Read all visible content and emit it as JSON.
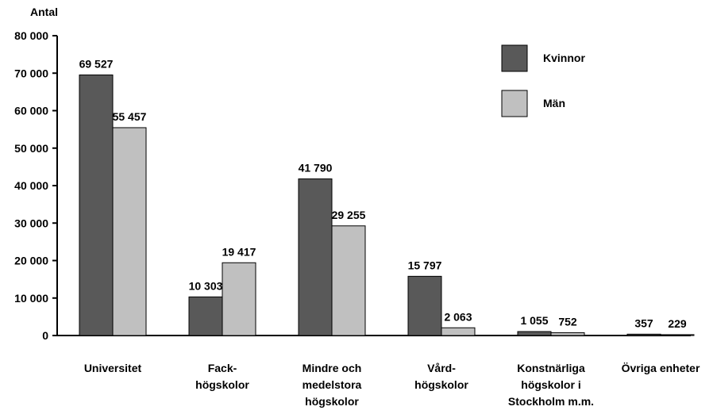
{
  "chart_data": {
    "type": "bar",
    "ylabel": "Antal",
    "ylim": [
      0,
      80000
    ],
    "yticks": [
      {
        "value": 0,
        "label": "0"
      },
      {
        "value": 10000,
        "label": "10 000"
      },
      {
        "value": 20000,
        "label": "20 000"
      },
      {
        "value": 30000,
        "label": "30 000"
      },
      {
        "value": 40000,
        "label": "40 000"
      },
      {
        "value": 50000,
        "label": "50 000"
      },
      {
        "value": 60000,
        "label": "60 000"
      },
      {
        "value": 70000,
        "label": "70 000"
      },
      {
        "value": 80000,
        "label": "80 000"
      }
    ],
    "categories": [
      [
        "Universitet"
      ],
      [
        "Fack-",
        "högskolor"
      ],
      [
        "Mindre och",
        "medelstora",
        "högskolor"
      ],
      [
        "Vård-",
        "högskolor"
      ],
      [
        "Konstnärliga",
        "högskolor i",
        "Stockholm m.m."
      ],
      [
        "Övriga enheter"
      ]
    ],
    "series": [
      {
        "name": "Kvinnor",
        "color": "#595959",
        "values": [
          69527,
          10303,
          41790,
          15797,
          1055,
          357
        ],
        "labels": [
          "69 527",
          "10 303",
          "41 790",
          "15 797",
          "1 055",
          "357"
        ]
      },
      {
        "name": "Män",
        "color": "#c0c0c0",
        "values": [
          55457,
          19417,
          29255,
          2063,
          752,
          229
        ],
        "labels": [
          "55 457",
          "19 417",
          "29 255",
          "2 063",
          "752",
          "229"
        ]
      }
    ],
    "grid": false,
    "legend": "top-right"
  }
}
